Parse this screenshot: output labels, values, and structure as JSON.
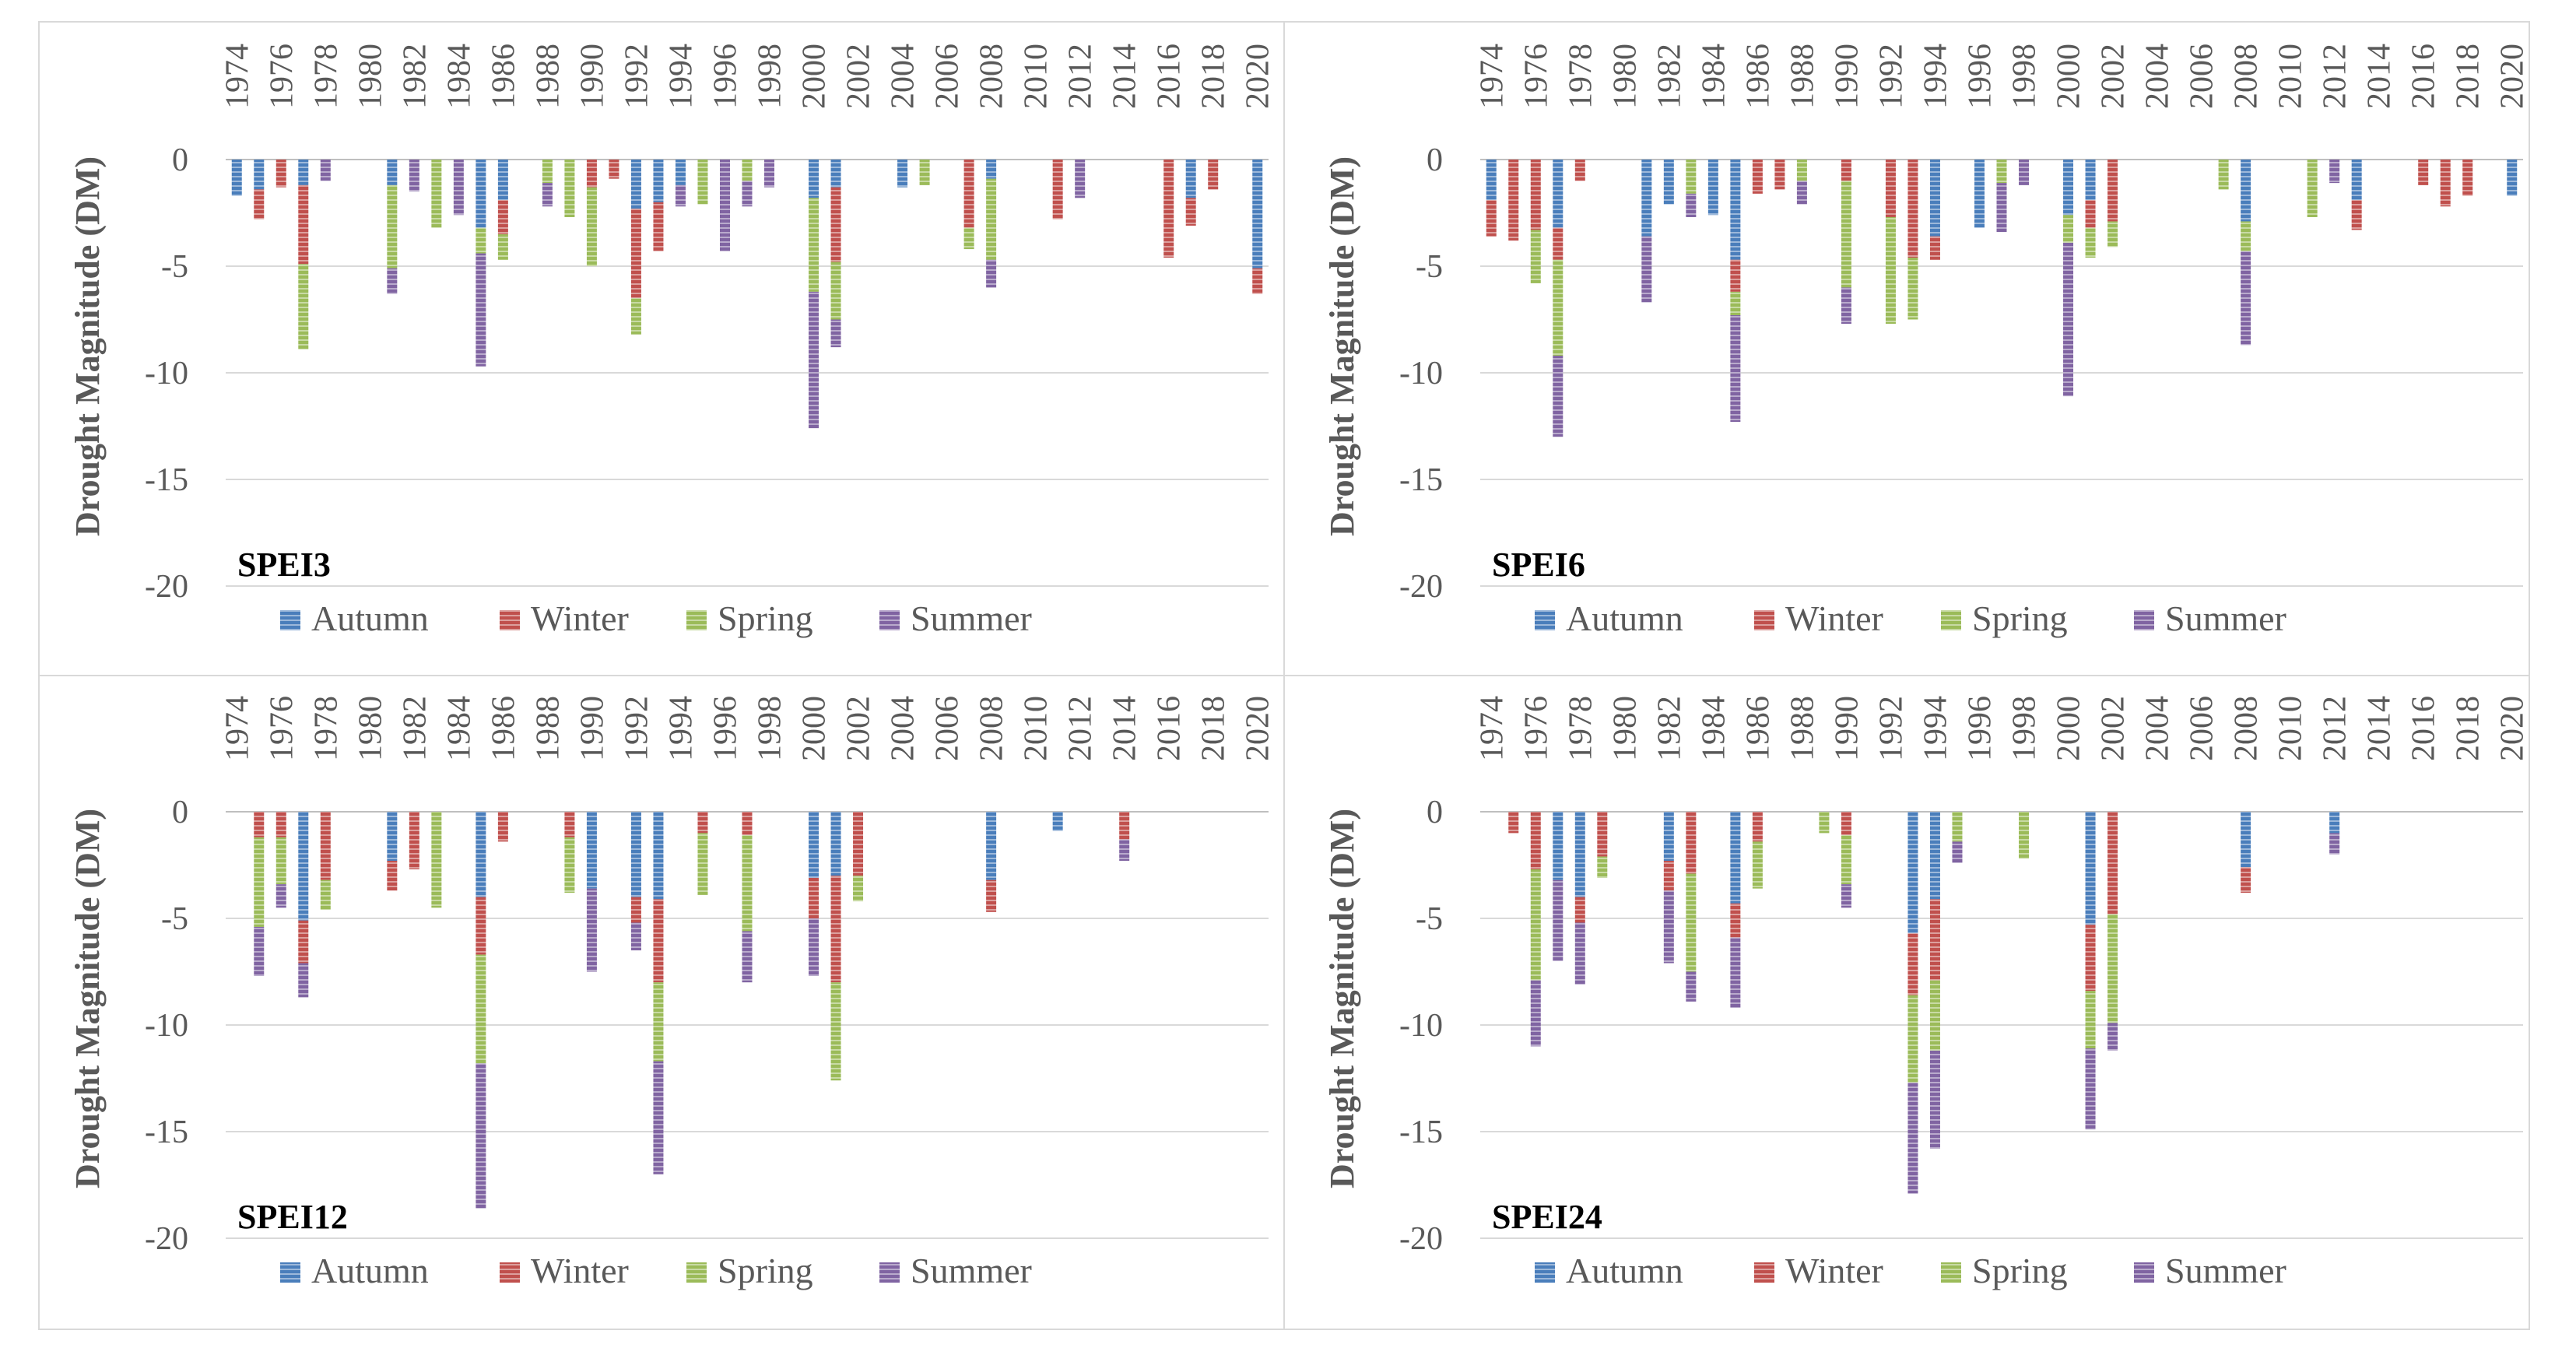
{
  "colors": {
    "Autumn": "#4a7ebb",
    "Winter": "#c0504d",
    "Spring": "#9bbb59",
    "Summer": "#8064a2"
  },
  "legend": [
    "Autumn",
    "Winter",
    "Spring",
    "Summer"
  ],
  "x_tick_labels": [
    "1974",
    "1976",
    "1978",
    "1980",
    "1982",
    "1984",
    "1986",
    "1988",
    "1990",
    "1992",
    "1994",
    "1996",
    "1998",
    "2000",
    "2002",
    "2004",
    "2006",
    "2008",
    "2010",
    "2012",
    "2014",
    "2016",
    "2018",
    "2020"
  ],
  "chart_data": [
    {
      "type": "bar",
      "stacked": true,
      "title": "SPEI3",
      "ylabel": "Drought Magnitude (DM)",
      "ylim": [
        -20,
        0
      ],
      "yticks": [
        0,
        -5,
        -10,
        -15,
        -20
      ],
      "xrange": [
        1974,
        2020
      ],
      "xlabel_position": "top",
      "series_order": [
        "Autumn",
        "Winter",
        "Spring",
        "Summer"
      ],
      "bars": [
        {
          "year": 1974,
          "Autumn": -1.7,
          "Winter": 0,
          "Spring": 0,
          "Summer": 0
        },
        {
          "year": 1975,
          "Autumn": -1.4,
          "Winter": -1.4,
          "Spring": 0,
          "Summer": 0
        },
        {
          "year": 1976,
          "Autumn": 0,
          "Winter": -1.3,
          "Spring": 0,
          "Summer": 0
        },
        {
          "year": 1977,
          "Autumn": -1.2,
          "Winter": -3.7,
          "Spring": -4.0,
          "Summer": 0
        },
        {
          "year": 1978,
          "Autumn": 0,
          "Winter": 0,
          "Spring": 0,
          "Summer": -1.0
        },
        {
          "year": 1981,
          "Autumn": -1.2,
          "Winter": 0,
          "Spring": -3.9,
          "Summer": -1.2
        },
        {
          "year": 1982,
          "Autumn": 0,
          "Winter": 0,
          "Spring": 0,
          "Summer": -1.5
        },
        {
          "year": 1983,
          "Autumn": 0,
          "Winter": 0,
          "Spring": -3.2,
          "Summer": 0
        },
        {
          "year": 1984,
          "Autumn": 0,
          "Winter": 0,
          "Spring": 0,
          "Summer": -2.6
        },
        {
          "year": 1985,
          "Autumn": -3.2,
          "Winter": 0,
          "Spring": -1.2,
          "Summer": -5.3
        },
        {
          "year": 1986,
          "Autumn": -1.9,
          "Winter": -1.6,
          "Spring": -1.2,
          "Summer": 0
        },
        {
          "year": 1988,
          "Autumn": 0,
          "Winter": 0,
          "Spring": -1.1,
          "Summer": -1.1
        },
        {
          "year": 1989,
          "Autumn": 0,
          "Winter": 0,
          "Spring": -2.7,
          "Summer": 0
        },
        {
          "year": 1990,
          "Autumn": 0,
          "Winter": -1.3,
          "Spring": -3.7,
          "Summer": 0
        },
        {
          "year": 1991,
          "Autumn": 0,
          "Winter": -0.9,
          "Spring": 0,
          "Summer": 0
        },
        {
          "year": 1992,
          "Autumn": -2.3,
          "Winter": -4.2,
          "Spring": -1.7,
          "Summer": 0
        },
        {
          "year": 1993,
          "Autumn": -2.0,
          "Winter": -2.3,
          "Spring": 0,
          "Summer": 0
        },
        {
          "year": 1994,
          "Autumn": -1.2,
          "Winter": 0,
          "Spring": 0,
          "Summer": -1.0
        },
        {
          "year": 1995,
          "Autumn": 0,
          "Winter": 0,
          "Spring": -2.1,
          "Summer": 0
        },
        {
          "year": 1996,
          "Autumn": 0,
          "Winter": 0,
          "Spring": 0,
          "Summer": -4.3
        },
        {
          "year": 1997,
          "Autumn": 0,
          "Winter": 0,
          "Spring": -1.0,
          "Summer": -1.2
        },
        {
          "year": 1998,
          "Autumn": 0,
          "Winter": 0,
          "Spring": 0,
          "Summer": -1.3
        },
        {
          "year": 2000,
          "Autumn": -1.8,
          "Winter": 0,
          "Spring": -4.4,
          "Summer": -6.4
        },
        {
          "year": 2001,
          "Autumn": -1.3,
          "Winter": -3.5,
          "Spring": -2.7,
          "Summer": -1.3
        },
        {
          "year": 2004,
          "Autumn": -1.3,
          "Winter": 0,
          "Spring": 0,
          "Summer": 0
        },
        {
          "year": 2005,
          "Autumn": 0,
          "Winter": 0,
          "Spring": -1.2,
          "Summer": 0
        },
        {
          "year": 2007,
          "Autumn": 0,
          "Winter": -3.2,
          "Spring": -1.0,
          "Summer": 0
        },
        {
          "year": 2008,
          "Autumn": -0.9,
          "Winter": 0,
          "Spring": -3.8,
          "Summer": -1.3
        },
        {
          "year": 2011,
          "Autumn": 0,
          "Winter": -2.8,
          "Spring": 0,
          "Summer": 0
        },
        {
          "year": 2012,
          "Autumn": 0,
          "Winter": 0,
          "Spring": 0,
          "Summer": -1.8
        },
        {
          "year": 2016,
          "Autumn": 0,
          "Winter": -4.6,
          "Spring": 0,
          "Summer": 0
        },
        {
          "year": 2017,
          "Autumn": -1.8,
          "Winter": -1.3,
          "Spring": 0,
          "Summer": 0
        },
        {
          "year": 2018,
          "Autumn": 0,
          "Winter": -1.4,
          "Spring": 0,
          "Summer": 0
        },
        {
          "year": 2020,
          "Autumn": -5.1,
          "Winter": -1.2,
          "Spring": 0,
          "Summer": 0
        }
      ]
    },
    {
      "type": "bar",
      "stacked": true,
      "title": "SPEI6",
      "ylabel": "Drought Magnitude (DM)",
      "ylim": [
        -20,
        0
      ],
      "yticks": [
        0,
        -5,
        -10,
        -15,
        -20
      ],
      "xrange": [
        1974,
        2020
      ],
      "xlabel_position": "top",
      "series_order": [
        "Autumn",
        "Winter",
        "Spring",
        "Summer"
      ],
      "bars": [
        {
          "year": 1974,
          "Autumn": -1.9,
          "Winter": -1.7,
          "Spring": 0,
          "Summer": 0
        },
        {
          "year": 1975,
          "Autumn": 0,
          "Winter": -3.8,
          "Spring": 0,
          "Summer": 0
        },
        {
          "year": 1976,
          "Autumn": 0,
          "Winter": -3.3,
          "Spring": -2.5,
          "Summer": 0
        },
        {
          "year": 1977,
          "Autumn": -3.2,
          "Winter": -1.5,
          "Spring": -4.5,
          "Summer": -3.8
        },
        {
          "year": 1978,
          "Autumn": 0,
          "Winter": -1.0,
          "Spring": 0,
          "Summer": 0
        },
        {
          "year": 1981,
          "Autumn": -3.6,
          "Winter": 0,
          "Spring": 0,
          "Summer": -3.1
        },
        {
          "year": 1982,
          "Autumn": -2.1,
          "Winter": 0,
          "Spring": 0,
          "Summer": 0
        },
        {
          "year": 1983,
          "Autumn": 0,
          "Winter": 0,
          "Spring": -1.6,
          "Summer": -1.1
        },
        {
          "year": 1984,
          "Autumn": -2.6,
          "Winter": 0,
          "Spring": 0,
          "Summer": 0
        },
        {
          "year": 1985,
          "Autumn": -4.7,
          "Winter": -1.5,
          "Spring": -1.1,
          "Summer": -5.0
        },
        {
          "year": 1986,
          "Autumn": 0,
          "Winter": -1.6,
          "Spring": 0,
          "Summer": 0
        },
        {
          "year": 1987,
          "Autumn": 0,
          "Winter": -1.4,
          "Spring": 0,
          "Summer": 0
        },
        {
          "year": 1988,
          "Autumn": 0,
          "Winter": 0,
          "Spring": -1.0,
          "Summer": -1.1
        },
        {
          "year": 1990,
          "Autumn": 0,
          "Winter": -1.0,
          "Spring": -5.0,
          "Summer": -1.7
        },
        {
          "year": 1992,
          "Autumn": 0,
          "Winter": -2.7,
          "Spring": -5.0,
          "Summer": 0
        },
        {
          "year": 1993,
          "Autumn": 0,
          "Winter": -4.6,
          "Spring": -2.9,
          "Summer": 0
        },
        {
          "year": 1994,
          "Autumn": -3.6,
          "Winter": -1.1,
          "Spring": 0,
          "Summer": 0
        },
        {
          "year": 1996,
          "Autumn": -3.2,
          "Winter": 0,
          "Spring": 0,
          "Summer": 0
        },
        {
          "year": 1997,
          "Autumn": 0,
          "Winter": 0,
          "Spring": -1.1,
          "Summer": -2.3
        },
        {
          "year": 1998,
          "Autumn": 0,
          "Winter": 0,
          "Spring": 0,
          "Summer": -1.2
        },
        {
          "year": 2000,
          "Autumn": -2.6,
          "Winter": 0,
          "Spring": -1.3,
          "Summer": -7.2
        },
        {
          "year": 2001,
          "Autumn": -1.9,
          "Winter": -1.3,
          "Spring": -1.4,
          "Summer": 0
        },
        {
          "year": 2002,
          "Autumn": 0,
          "Winter": -2.9,
          "Spring": -1.2,
          "Summer": 0
        },
        {
          "year": 2007,
          "Autumn": 0,
          "Winter": 0,
          "Spring": -1.4,
          "Summer": 0
        },
        {
          "year": 2008,
          "Autumn": -2.9,
          "Winter": 0,
          "Spring": -1.4,
          "Summer": -4.4
        },
        {
          "year": 2011,
          "Autumn": 0,
          "Winter": 0,
          "Spring": -2.7,
          "Summer": 0
        },
        {
          "year": 2012,
          "Autumn": 0,
          "Winter": 0,
          "Spring": 0,
          "Summer": -1.1
        },
        {
          "year": 2013,
          "Autumn": -1.9,
          "Winter": -1.4,
          "Spring": 0,
          "Summer": 0
        },
        {
          "year": 2016,
          "Autumn": 0,
          "Winter": -1.2,
          "Spring": 0,
          "Summer": 0
        },
        {
          "year": 2017,
          "Autumn": 0,
          "Winter": -2.2,
          "Spring": 0,
          "Summer": 0
        },
        {
          "year": 2018,
          "Autumn": 0,
          "Winter": -1.7,
          "Spring": 0,
          "Summer": 0
        },
        {
          "year": 2020,
          "Autumn": -1.7,
          "Winter": 0,
          "Spring": 0,
          "Summer": 0
        }
      ]
    },
    {
      "type": "bar",
      "stacked": true,
      "title": "SPEI12",
      "ylabel": "Drought Magnitude (DM)",
      "ylim": [
        -20,
        0
      ],
      "yticks": [
        0,
        -5,
        -10,
        -15,
        -20
      ],
      "xrange": [
        1974,
        2020
      ],
      "xlabel_position": "top",
      "series_order": [
        "Autumn",
        "Winter",
        "Spring",
        "Summer"
      ],
      "bars": [
        {
          "year": 1975,
          "Autumn": 0,
          "Winter": -1.2,
          "Spring": -4.2,
          "Summer": -2.3
        },
        {
          "year": 1976,
          "Autumn": 0,
          "Winter": -1.2,
          "Spring": -2.2,
          "Summer": -1.1
        },
        {
          "year": 1977,
          "Autumn": -5.1,
          "Winter": -2.0,
          "Spring": 0,
          "Summer": -1.6
        },
        {
          "year": 1978,
          "Autumn": 0,
          "Winter": -3.2,
          "Spring": -1.4,
          "Summer": 0
        },
        {
          "year": 1981,
          "Autumn": -2.3,
          "Winter": -1.4,
          "Spring": 0,
          "Summer": 0
        },
        {
          "year": 1982,
          "Autumn": 0,
          "Winter": -2.7,
          "Spring": 0,
          "Summer": 0
        },
        {
          "year": 1983,
          "Autumn": 0,
          "Winter": 0,
          "Spring": -4.5,
          "Summer": 0
        },
        {
          "year": 1985,
          "Autumn": -4.0,
          "Winter": -2.7,
          "Spring": -5.1,
          "Summer": -6.8
        },
        {
          "year": 1986,
          "Autumn": 0,
          "Winter": -1.4,
          "Spring": 0,
          "Summer": 0
        },
        {
          "year": 1989,
          "Autumn": 0,
          "Winter": -1.2,
          "Spring": -2.6,
          "Summer": 0
        },
        {
          "year": 1990,
          "Autumn": -3.6,
          "Winter": 0,
          "Spring": 0,
          "Summer": -3.9
        },
        {
          "year": 1992,
          "Autumn": -4.0,
          "Winter": -1.2,
          "Spring": 0,
          "Summer": -1.3
        },
        {
          "year": 1993,
          "Autumn": -4.1,
          "Winter": -3.9,
          "Spring": -3.7,
          "Summer": -5.3
        },
        {
          "year": 1995,
          "Autumn": 0,
          "Winter": -1.0,
          "Spring": -2.9,
          "Summer": 0
        },
        {
          "year": 1997,
          "Autumn": 0,
          "Winter": -1.1,
          "Spring": -4.5,
          "Summer": -2.4
        },
        {
          "year": 2000,
          "Autumn": -3.1,
          "Winter": -1.9,
          "Spring": 0,
          "Summer": -2.7
        },
        {
          "year": 2001,
          "Autumn": -3.0,
          "Winter": -5.0,
          "Spring": -4.6,
          "Summer": 0
        },
        {
          "year": 2002,
          "Autumn": 0,
          "Winter": -3.0,
          "Spring": -1.2,
          "Summer": 0
        },
        {
          "year": 2008,
          "Autumn": -3.2,
          "Winter": -1.5,
          "Spring": 0,
          "Summer": 0
        },
        {
          "year": 2011,
          "Autumn": -0.9,
          "Winter": 0,
          "Spring": 0,
          "Summer": 0
        },
        {
          "year": 2014,
          "Autumn": 0,
          "Winter": -1.3,
          "Spring": 0,
          "Summer": -1.0
        }
      ]
    },
    {
      "type": "bar",
      "stacked": true,
      "title": "SPEI24",
      "ylabel": "Drought Magnitude (DM)",
      "ylim": [
        -20,
        0
      ],
      "yticks": [
        0,
        -5,
        -10,
        -15,
        -20
      ],
      "xrange": [
        1974,
        2020
      ],
      "xlabel_position": "top",
      "series_order": [
        "Autumn",
        "Winter",
        "Spring",
        "Summer"
      ],
      "bars": [
        {
          "year": 1975,
          "Autumn": 0,
          "Winter": -1.0,
          "Spring": 0,
          "Summer": 0
        },
        {
          "year": 1976,
          "Autumn": 0,
          "Winter": -2.7,
          "Spring": -5.2,
          "Summer": -3.1
        },
        {
          "year": 1977,
          "Autumn": -3.2,
          "Winter": 0,
          "Spring": 0,
          "Summer": -3.8
        },
        {
          "year": 1978,
          "Autumn": -4.0,
          "Winter": -1.2,
          "Spring": 0,
          "Summer": -2.9
        },
        {
          "year": 1979,
          "Autumn": 0,
          "Winter": -2.1,
          "Spring": -1.0,
          "Summer": 0
        },
        {
          "year": 1982,
          "Autumn": -2.3,
          "Winter": -1.4,
          "Spring": 0,
          "Summer": -3.4
        },
        {
          "year": 1983,
          "Autumn": 0,
          "Winter": -2.9,
          "Spring": -4.6,
          "Summer": -1.4
        },
        {
          "year": 1985,
          "Autumn": -4.3,
          "Winter": -1.6,
          "Spring": 0,
          "Summer": -3.3
        },
        {
          "year": 1986,
          "Autumn": 0,
          "Winter": -1.4,
          "Spring": -2.2,
          "Summer": 0
        },
        {
          "year": 1989,
          "Autumn": 0,
          "Winter": 0,
          "Spring": -1.0,
          "Summer": 0
        },
        {
          "year": 1990,
          "Autumn": 0,
          "Winter": -1.1,
          "Spring": -2.3,
          "Summer": -1.1
        },
        {
          "year": 1993,
          "Autumn": -5.7,
          "Winter": -2.9,
          "Spring": -4.1,
          "Summer": -5.2
        },
        {
          "year": 1994,
          "Autumn": -4.1,
          "Winter": -3.8,
          "Spring": -3.3,
          "Summer": -4.6
        },
        {
          "year": 1995,
          "Autumn": 0,
          "Winter": 0,
          "Spring": -1.4,
          "Summer": -1.0
        },
        {
          "year": 1998,
          "Autumn": 0,
          "Winter": 0,
          "Spring": -2.2,
          "Summer": 0
        },
        {
          "year": 2001,
          "Autumn": -5.3,
          "Winter": -3.1,
          "Spring": -2.7,
          "Summer": -3.8
        },
        {
          "year": 2002,
          "Autumn": 0,
          "Winter": -4.8,
          "Spring": -5.1,
          "Summer": -1.3
        },
        {
          "year": 2008,
          "Autumn": -2.6,
          "Winter": -1.2,
          "Spring": 0,
          "Summer": 0
        },
        {
          "year": 2012,
          "Autumn": -1.0,
          "Winter": 0,
          "Spring": 0,
          "Summer": -1.0
        }
      ]
    }
  ]
}
